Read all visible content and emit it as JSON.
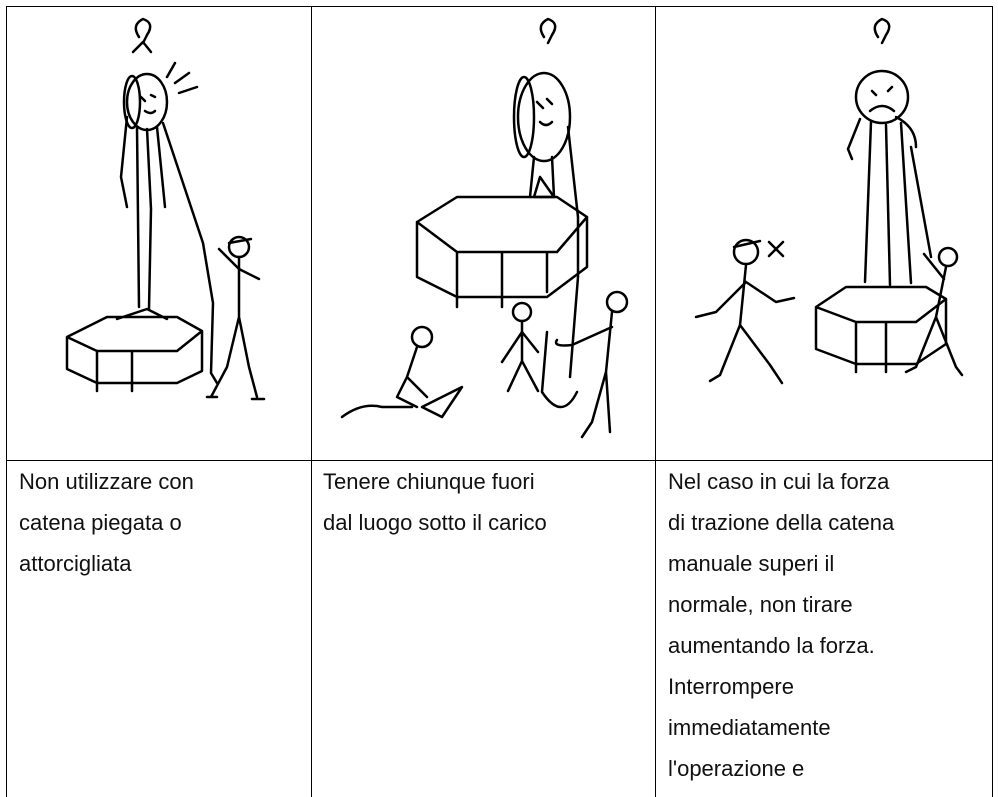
{
  "captions": [
    {
      "lines": [
        "Non utilizzare con",
        "catena piegata o",
        "attorcigliata"
      ]
    },
    {
      "lines": [
        "Tenere chiunque fuori",
        "dal luogo sotto il carico"
      ]
    },
    {
      "lines": [
        "Nel caso in cui la forza",
        "di trazione della catena",
        "manuale superi il",
        "normale, non tirare",
        "aumentando la forza.",
        "Interrompere",
        "immediatamente",
        "l'operazione e"
      ]
    }
  ]
}
